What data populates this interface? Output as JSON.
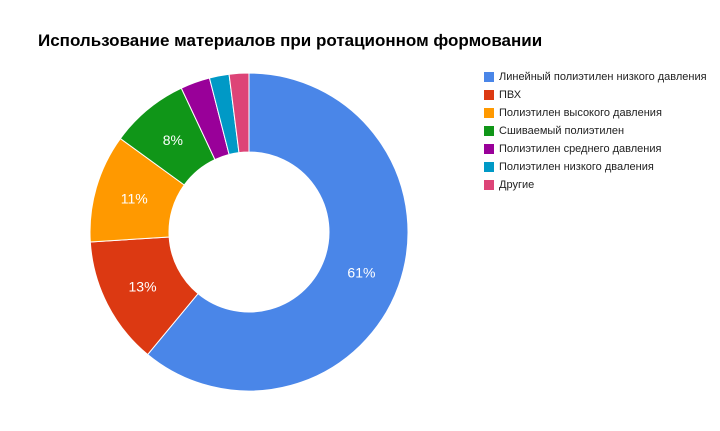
{
  "chart_data": {
    "type": "pie",
    "donut": true,
    "title": "Использование материалов при ротационном формовании",
    "series": [
      {
        "name": "Линейный полиэтилен низкого давления",
        "value": 61,
        "label": "61%",
        "color": "#4a86e8"
      },
      {
        "name": "ПВХ",
        "value": 13,
        "label": "13%",
        "color": "#dc3912"
      },
      {
        "name": "Полиэтилен высокого давления",
        "value": 11,
        "label": "11%",
        "color": "#ff9900"
      },
      {
        "name": "Сшиваемый полиэтилен",
        "value": 8,
        "label": "8%",
        "color": "#109618"
      },
      {
        "name": "Полиэтилен среднего давления",
        "value": 3,
        "label": "",
        "color": "#990099"
      },
      {
        "name": "Полиэтилен низкого дваления",
        "value": 2,
        "label": "",
        "color": "#0099c6"
      },
      {
        "name": "Другие",
        "value": 2,
        "label": "",
        "color": "#dd4477"
      }
    ],
    "legend": "right",
    "start": "top",
    "direction": "clockwise"
  }
}
